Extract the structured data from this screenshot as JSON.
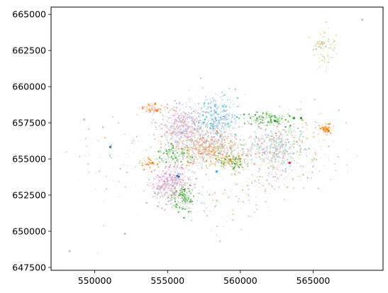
{
  "chart_data": {
    "type": "scatter",
    "title": "",
    "xlabel": "",
    "ylabel": "",
    "xlim": [
      547000,
      569800
    ],
    "ylim": [
      647300,
      665500
    ],
    "x_ticks": [
      550000,
      555000,
      560000,
      565000
    ],
    "x_tick_labels": [
      "550000",
      "555000",
      "560000",
      "565000"
    ],
    "y_ticks": [
      647500,
      650000,
      652500,
      655000,
      657500,
      660000,
      662500,
      665000
    ],
    "y_tick_labels": [
      "647500",
      "650000",
      "652500",
      "655000",
      "657500",
      "660000",
      "662500",
      "665000"
    ],
    "grid": false,
    "legend": "none",
    "palette": [
      "#1f77b4",
      "#aec7e8",
      "#ff7f0e",
      "#ffbb78",
      "#2ca02c",
      "#98df8a",
      "#d62728",
      "#ff9896",
      "#9467bd",
      "#c5b0d5",
      "#8c564b",
      "#c49c94",
      "#e377c2",
      "#f7b6d2",
      "#7f7f7f",
      "#c7c7c7",
      "#bcbd22",
      "#dbdb8d",
      "#17becf",
      "#9edae5"
    ],
    "clusters": [
      {
        "cx": 556000,
        "cy": 657300,
        "sx": 900,
        "sy": 700,
        "n": 520,
        "colors": [
          "#c5b0d5",
          "#f7b6d2",
          "#c7c7c7",
          "#ff9896",
          "#aec7e8"
        ]
      },
      {
        "cx": 558300,
        "cy": 657800,
        "sx": 800,
        "sy": 900,
        "n": 420,
        "colors": [
          "#aec7e8",
          "#9edae5",
          "#c5b0d5",
          "#17becf"
        ]
      },
      {
        "cx": 557800,
        "cy": 655700,
        "sx": 1300,
        "sy": 600,
        "n": 800,
        "colors": [
          "#ffbb78",
          "#ff9896",
          "#dbdb8d",
          "#c49c94",
          "#f7b6d2",
          "#98df8a",
          "#aec7e8",
          "#ff7f0e"
        ]
      },
      {
        "cx": 555200,
        "cy": 653300,
        "sx": 700,
        "sy": 650,
        "n": 450,
        "colors": [
          "#f7b6d2",
          "#c5b0d5",
          "#e377c2",
          "#c7c7c7"
        ]
      },
      {
        "cx": 556000,
        "cy": 652300,
        "sx": 400,
        "sy": 450,
        "n": 160,
        "colors": [
          "#2ca02c",
          "#98df8a"
        ]
      },
      {
        "cx": 562300,
        "cy": 655800,
        "sx": 1000,
        "sy": 800,
        "n": 520,
        "colors": [
          "#aec7e8",
          "#c5b0d5",
          "#98df8a",
          "#9edae5",
          "#ff9896"
        ]
      },
      {
        "cx": 562000,
        "cy": 657800,
        "sx": 900,
        "sy": 250,
        "n": 160,
        "colors": [
          "#2ca02c",
          "#98df8a"
        ]
      },
      {
        "cx": 559400,
        "cy": 654800,
        "sx": 500,
        "sy": 300,
        "n": 120,
        "colors": [
          "#2ca02c",
          "#98df8a",
          "#ff7f0e"
        ]
      },
      {
        "cx": 555300,
        "cy": 655300,
        "sx": 600,
        "sy": 350,
        "n": 120,
        "colors": [
          "#2ca02c",
          "#98df8a"
        ]
      },
      {
        "cx": 554000,
        "cy": 658500,
        "sx": 500,
        "sy": 150,
        "n": 70,
        "colors": [
          "#ff7f0e",
          "#ffbb78",
          "#ff9896"
        ]
      },
      {
        "cx": 565800,
        "cy": 657100,
        "sx": 200,
        "sy": 150,
        "n": 70,
        "colors": [
          "#ff7f0e",
          "#ffbb78"
        ]
      },
      {
        "cx": 565800,
        "cy": 662700,
        "sx": 450,
        "sy": 700,
        "n": 110,
        "colors": [
          "#ffbb78",
          "#98df8a",
          "#dbdb8d",
          "#c7c7c7"
        ]
      },
      {
        "cx": 564600,
        "cy": 656000,
        "sx": 1200,
        "sy": 1300,
        "n": 130,
        "colors": [
          "#ffbb78",
          "#98df8a",
          "#aec7e8",
          "#dbdb8d"
        ]
      },
      {
        "cx": 553800,
        "cy": 654700,
        "sx": 300,
        "sy": 250,
        "n": 40,
        "colors": [
          "#ff7f0e",
          "#ffbb78"
        ]
      },
      {
        "cx": 559000,
        "cy": 652500,
        "sx": 1500,
        "sy": 1300,
        "n": 120,
        "colors": [
          "#aec7e8",
          "#98df8a",
          "#ffbb78",
          "#c7c7c7"
        ]
      },
      {
        "cx": 551000,
        "cy": 654500,
        "sx": 1500,
        "sy": 2000,
        "n": 70,
        "colors": [
          "#98df8a",
          "#ffbb78",
          "#aec7e8",
          "#c7c7c7"
        ]
      },
      {
        "cx": 562500,
        "cy": 653800,
        "sx": 1200,
        "sy": 600,
        "n": 80,
        "colors": [
          "#ffbb78",
          "#aec7e8",
          "#c5b0d5"
        ]
      }
    ],
    "accent_points": [
      {
        "x": 555600,
        "y": 653900,
        "color": "#1f77b4"
      },
      {
        "x": 555700,
        "y": 653850,
        "color": "#1f77b4"
      },
      {
        "x": 562300,
        "y": 657700,
        "color": "#2ca02c"
      },
      {
        "x": 563600,
        "y": 657900,
        "color": "#2ca02c"
      },
      {
        "x": 564100,
        "y": 657900,
        "color": "#2ca02c"
      },
      {
        "x": 565900,
        "y": 657100,
        "color": "#ff7f0e"
      },
      {
        "x": 566000,
        "y": 657000,
        "color": "#ff7f0e"
      },
      {
        "x": 553900,
        "y": 654800,
        "color": "#ff7f0e"
      },
      {
        "x": 554200,
        "y": 658400,
        "color": "#ff7f0e"
      },
      {
        "x": 563300,
        "y": 654800,
        "color": "#d62728"
      },
      {
        "x": 551000,
        "y": 655900,
        "color": "#1f77b4"
      },
      {
        "x": 548200,
        "y": 648700,
        "color": "#c7c7c7"
      },
      {
        "x": 549200,
        "y": 657800,
        "color": "#c7c7c7"
      },
      {
        "x": 568300,
        "y": 664700,
        "color": "#c7c7c7"
      },
      {
        "x": 552000,
        "y": 649900,
        "color": "#c7c7c7"
      },
      {
        "x": 558300,
        "y": 654200,
        "color": "#17becf"
      }
    ]
  }
}
